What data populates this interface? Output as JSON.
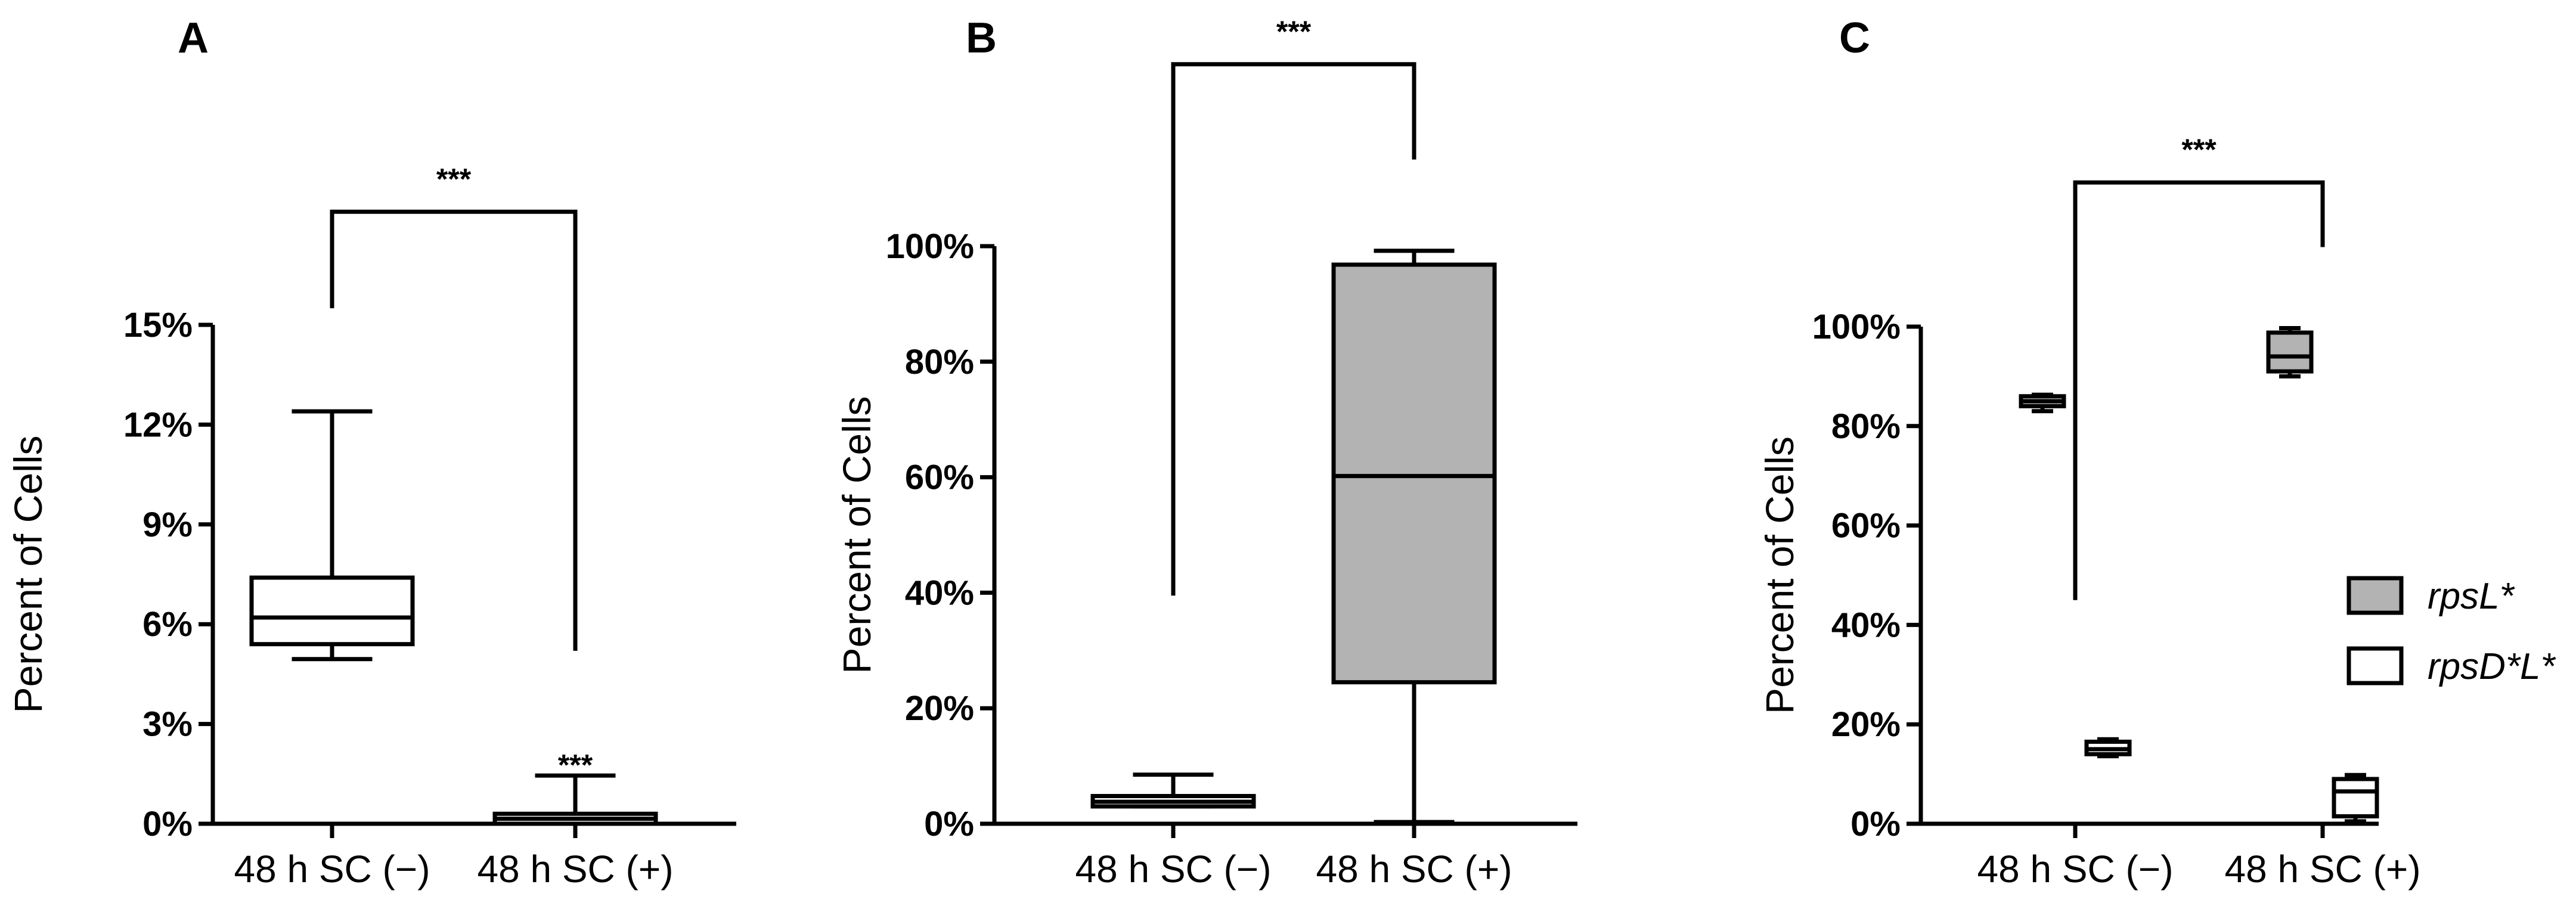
{
  "chart_data": [
    {
      "panel": "A",
      "type": "box",
      "ylabel": "Percent of Cells",
      "ylim": [
        0,
        15
      ],
      "yticks": [
        "0%",
        "3%",
        "6%",
        "9%",
        "12%",
        "15%"
      ],
      "categories": [
        "48 h SC (−)",
        "48 h SC (+)"
      ],
      "series": [
        {
          "name": "",
          "fill": "#ffffff",
          "boxes": [
            {
              "category": 0,
              "min": 4.95,
              "q1": 5.4,
              "median": 6.2,
              "q3": 7.4,
              "max": 12.4
            },
            {
              "category": 1,
              "min": 0.0,
              "q1": 0.0,
              "median": 0.15,
              "q3": 0.3,
              "max": 1.45
            }
          ]
        }
      ],
      "brackets": [
        {
          "from": 0,
          "to": 1,
          "y": 18.4,
          "left_end": 15.5,
          "right_end": 5.2,
          "label": "***"
        }
      ],
      "annotations": [
        {
          "category": 1,
          "y": 2.0,
          "label": "***"
        }
      ]
    },
    {
      "panel": "B",
      "type": "box",
      "ylabel": "Percent of Cells",
      "ylim": [
        0,
        100
      ],
      "yticks": [
        "0%",
        "20%",
        "40%",
        "60%",
        "80%",
        "100%"
      ],
      "categories": [
        "48 h SC (−)",
        "48 h SC (+)"
      ],
      "series": [
        {
          "name": "",
          "fill": "#b3b3b3",
          "boxes": [
            {
              "category": 0,
              "min": 3.0,
              "q1": 3.0,
              "median": 3.8,
              "q3": 4.8,
              "max": 8.5,
              "fill": "#ffffff"
            },
            {
              "category": 1,
              "min": 0.3,
              "q1": 24.5,
              "median": 60.2,
              "q3": 96.8,
              "max": 99.2,
              "fill": "#b3b3b3"
            }
          ]
        }
      ],
      "brackets": [
        {
          "from": 0,
          "to": 1,
          "y": 131.5,
          "left_end": 39.5,
          "right_end": 115.0,
          "label": "***"
        }
      ],
      "annotations": []
    },
    {
      "panel": "C",
      "type": "box",
      "ylabel": "Percent of Cells",
      "ylim": [
        0,
        100
      ],
      "yticks": [
        "0%",
        "20%",
        "40%",
        "60%",
        "80%",
        "100%"
      ],
      "categories": [
        "48 h SC (−)",
        "48 h SC (+)"
      ],
      "series": [
        {
          "name": "rpsL*",
          "fill": "#b3b3b3",
          "boxes": [
            {
              "category": 0,
              "min": 83.0,
              "q1": 84.0,
              "median": 85.0,
              "q3": 86.0,
              "max": 86.3
            },
            {
              "category": 1,
              "min": 90.0,
              "q1": 91.0,
              "median": 94.0,
              "q3": 98.8,
              "max": 99.7
            }
          ]
        },
        {
          "name": "rpsD*L*",
          "fill": "#ffffff",
          "boxes": [
            {
              "category": 0,
              "min": 13.6,
              "q1": 14.0,
              "median": 15.0,
              "q3": 16.5,
              "max": 17.0
            },
            {
              "category": 1,
              "min": 0.5,
              "q1": 1.5,
              "median": 6.5,
              "q3": 9.0,
              "max": 9.8
            }
          ]
        }
      ],
      "brackets": [
        {
          "from": 0,
          "to": 1,
          "y": 129.0,
          "left_end": 45.0,
          "right_end": 116.0,
          "label": "***"
        }
      ],
      "legend": {
        "placement": "right",
        "entries": [
          "rpsL*",
          "rpsD*L*"
        ]
      },
      "annotations": []
    }
  ]
}
